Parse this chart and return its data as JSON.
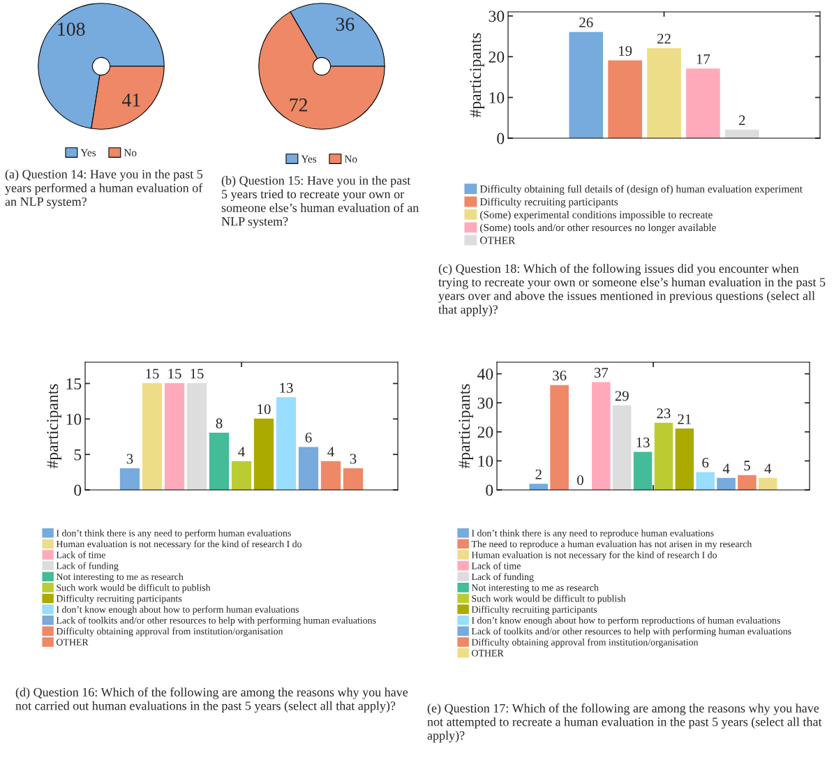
{
  "chart_data": [
    {
      "type": "donut",
      "title": "(a) Question 14: Have you in the past 5 years performed a human evaluation of an NLP system?",
      "categories": [
        "Yes",
        "No"
      ],
      "values": [
        108,
        41
      ],
      "colors": [
        "#77aadd",
        "#ee8866"
      ],
      "data_labels": true,
      "legend": "bottom"
    },
    {
      "type": "donut",
      "title": "(b) Question 15: Have you in the past 5 years tried to recreate your own or someone else’s human evaluation of an NLP system?",
      "categories": [
        "Yes",
        "No"
      ],
      "values": [
        36,
        72
      ],
      "colors": [
        "#77aadd",
        "#ee8866"
      ],
      "data_labels": true,
      "legend": "bottom"
    },
    {
      "type": "bar",
      "title": "(c) Question 18: Which of the following issues did you encounter when trying to recreate your own or someone else’s human evaluation in the past 5 years over and above the issues mentioned in previous questions (select all that apply)?",
      "ylabel": "#participants",
      "categories": [
        null
      ],
      "ylim": [
        0,
        31
      ],
      "yticks": [
        0,
        10,
        20,
        30
      ],
      "data_labels": true,
      "legend": "bottom",
      "tick_labels": "y",
      "series": [
        {
          "name": "Difficulty obtaining full details of (design of) human evaluation experiment",
          "color": "#77aadd",
          "values": [
            26
          ]
        },
        {
          "name": "Difficulty recruiting participants",
          "color": "#ee8866",
          "values": [
            19
          ]
        },
        {
          "name": "(Some) experimental conditions impossible to recreate",
          "color": "#eedd88",
          "values": [
            22
          ]
        },
        {
          "name": "(Some) tools and/or other resources no longer available",
          "color": "#ffaabb",
          "values": [
            17
          ]
        },
        {
          "name": "OTHER",
          "color": "#dddddd",
          "values": [
            2
          ]
        }
      ]
    },
    {
      "type": "bar",
      "title": "(d) Question 16: Which of the following are among the reasons why you have not carried out human evaluations in the past 5 years (select all that apply)?",
      "ylabel": "#participants",
      "categories": [
        null
      ],
      "ylim": [
        0,
        18
      ],
      "yticks": [
        0,
        5,
        10,
        15
      ],
      "data_labels": true,
      "legend": "bottom",
      "tick_labels": "y",
      "series": [
        {
          "name": "I don’t think there is any need to perform human evaluations",
          "color": "#77aadd",
          "values": [
            3
          ]
        },
        {
          "name": "Human evaluation is not necessary for the kind of research I do",
          "color": "#eedd88",
          "values": [
            15
          ]
        },
        {
          "name": "Lack of time",
          "color": "#ffaabb",
          "values": [
            15
          ]
        },
        {
          "name": "Lack of funding",
          "color": "#dddddd",
          "values": [
            15
          ]
        },
        {
          "name": "Not interesting to me as research",
          "color": "#44bb99",
          "values": [
            8
          ]
        },
        {
          "name": "Such work would be difficult to publish",
          "color": "#bbcc33",
          "values": [
            4
          ]
        },
        {
          "name": "Difficulty recruiting participants",
          "color": "#aaaa00",
          "values": [
            10
          ]
        },
        {
          "name": "I don’t know enough about how to perform human evaluations",
          "color": "#99ddff",
          "values": [
            13
          ]
        },
        {
          "name": "Lack of toolkits and/or other resources to help with performing human evaluations",
          "color": "#77aadd",
          "values": [
            6
          ]
        },
        {
          "name": "Difficulty obtaining approval from institution/organisation",
          "color": "#ee8866",
          "values": [
            4
          ]
        },
        {
          "name": "OTHER",
          "color": "#ee8866",
          "values": [
            3
          ]
        }
      ]
    },
    {
      "type": "bar",
      "title": "(e) Question 17: Which of the following are among the reasons why you have not attempted to recreate a human evaluation in the past 5 years (select all that apply)?",
      "ylabel": "#participants",
      "categories": [
        null
      ],
      "ylim": [
        0,
        44
      ],
      "yticks": [
        0,
        10,
        20,
        30,
        40
      ],
      "data_labels": true,
      "legend": "bottom",
      "tick_labels": "y",
      "series": [
        {
          "name": "I don’t think there is any need to reproduce human evaluations",
          "color": "#77aadd",
          "values": [
            2
          ]
        },
        {
          "name": "The need to reproduce a human evaluation has not arisen in my research",
          "color": "#ee8866",
          "values": [
            36
          ]
        },
        {
          "name": "Human evaluation is not necessary for the kind of research I do",
          "color": "#eedd88",
          "values": [
            0
          ]
        },
        {
          "name": "Lack of time",
          "color": "#ffaabb",
          "values": [
            37
          ]
        },
        {
          "name": "Lack of funding",
          "color": "#dddddd",
          "values": [
            29
          ]
        },
        {
          "name": "Not interesting to me as research",
          "color": "#44bb99",
          "values": [
            13
          ]
        },
        {
          "name": "Such work would be difficult to publish",
          "color": "#bbcc33",
          "values": [
            23
          ]
        },
        {
          "name": "Difficulty recruiting participants",
          "color": "#aaaa00",
          "values": [
            21
          ]
        },
        {
          "name": "I don’t know enough about how to perform reproductions of human evaluations",
          "color": "#99ddff",
          "values": [
            6
          ]
        },
        {
          "name": "Lack of toolkits and/or other resources to help with performing human evaluations",
          "color": "#77aadd",
          "values": [
            4
          ]
        },
        {
          "name": "Difficulty obtaining approval from institution/organisation",
          "color": "#ee8866",
          "values": [
            5
          ]
        },
        {
          "name": "OTHER",
          "color": "#eedd88",
          "values": [
            4
          ]
        }
      ]
    }
  ]
}
